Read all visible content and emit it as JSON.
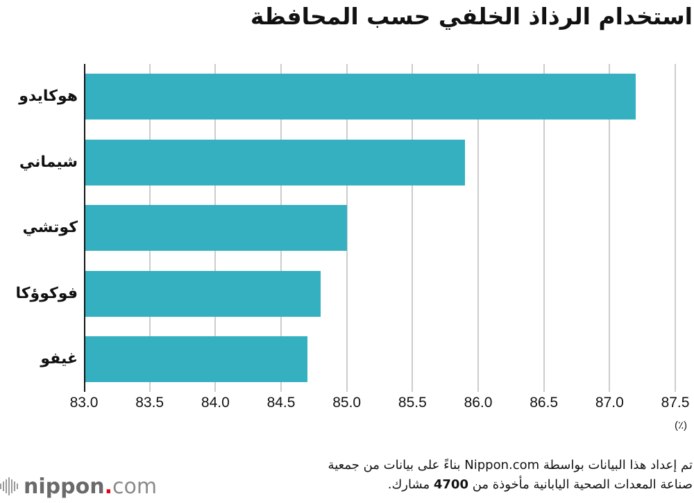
{
  "title": "استخدام الرذاذ الخلفي حسب المحافظة",
  "unit_label": "(٪)",
  "source": {
    "line1": "تم إعداد هذا البيانات بواسطة Nippon.com بناءً على بيانات من جمعية",
    "line2_pre": "صناعة المعدات الصحية اليابانية مأخوذة من ",
    "line2_num": "4700",
    "line2_post": " مشارك."
  },
  "logo": {
    "brand": "nippon",
    "dot": ".",
    "tld": "com"
  },
  "colors": {
    "bar": "#34b0c0",
    "grid": "#cccccc",
    "axis": "#111111",
    "logo_dot": "#e60012"
  },
  "ticks": [
    "83.0",
    "83.5",
    "84.0",
    "84.5",
    "85.0",
    "85.5",
    "86.0",
    "86.5",
    "87.0",
    "87.5"
  ],
  "chart_data": {
    "type": "bar",
    "orientation": "horizontal",
    "title": "استخدام الرذاذ الخلفي حسب المحافظة",
    "categories": [
      "هوكايدو",
      "شيماني",
      "كوتشي",
      "فوكوؤكا",
      "غيفو"
    ],
    "values": [
      87.2,
      85.9,
      85.0,
      84.8,
      84.7
    ],
    "xlabel": "(٪)",
    "ylabel": "",
    "xlim": [
      83.0,
      87.5
    ],
    "xticks": [
      83.0,
      83.5,
      84.0,
      84.5,
      85.0,
      85.5,
      86.0,
      86.5,
      87.0,
      87.5
    ],
    "grid": true,
    "legend": null
  }
}
